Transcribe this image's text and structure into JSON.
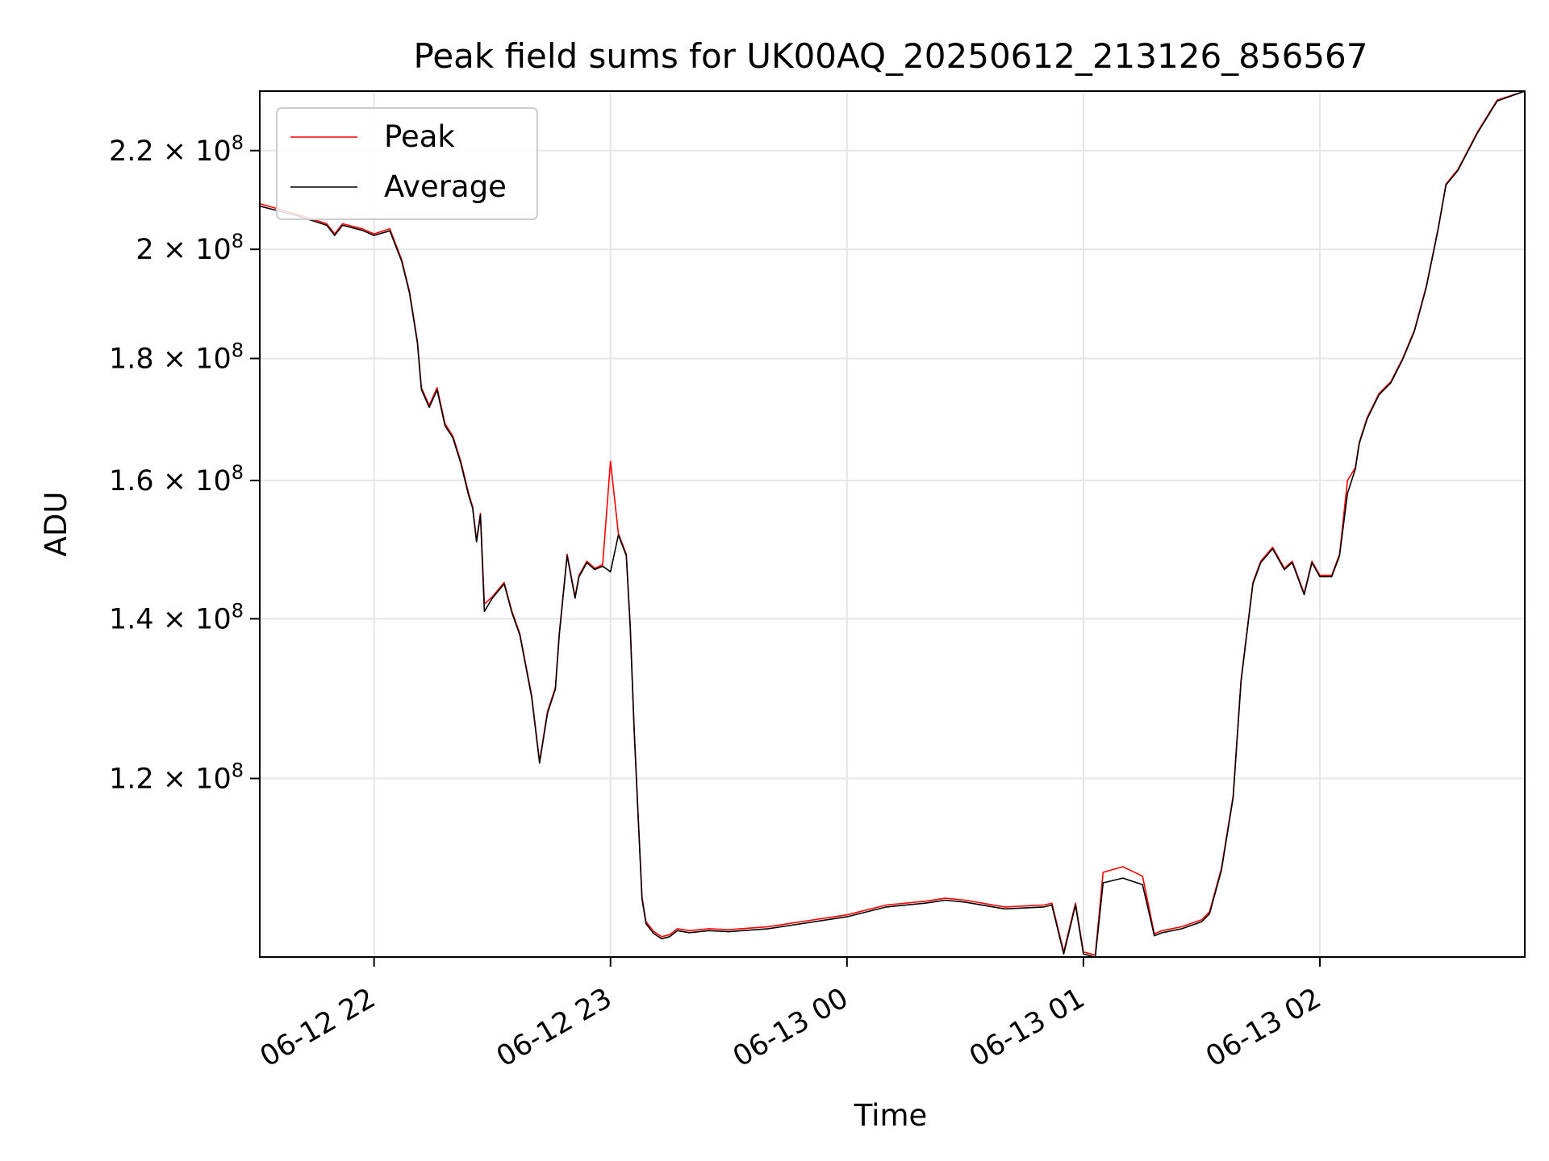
{
  "chart_data": {
    "type": "line",
    "title": "Peak field sums for UK00AQ_20250612_213126_856567",
    "xlabel": "Time",
    "ylabel": "ADU",
    "yscale": "log",
    "ylim": [
      101000000,
      233000000
    ],
    "xlim": [
      "2025-06-12T21:31",
      "2025-06-13T02:52"
    ],
    "grid": true,
    "legend_position": "upper-left",
    "x_ticks": [
      {
        "t": "2025-06-12T22:00",
        "label": "06-12 22"
      },
      {
        "t": "2025-06-12T23:00",
        "label": "06-12 23"
      },
      {
        "t": "2025-06-13T00:00",
        "label": "06-13 00"
      },
      {
        "t": "2025-06-13T01:00",
        "label": "06-13 01"
      },
      {
        "t": "2025-06-13T02:00",
        "label": "06-13 02"
      }
    ],
    "y_ticks": [
      {
        "value": 120000000,
        "mantissa": "1.2",
        "exp": "8"
      },
      {
        "value": 140000000,
        "mantissa": "1.4",
        "exp": "8"
      },
      {
        "value": 160000000,
        "mantissa": "1.6",
        "exp": "8"
      },
      {
        "value": 180000000,
        "mantissa": "1.8",
        "exp": "8"
      },
      {
        "value": 200000000,
        "mantissa": "2",
        "exp": "8"
      },
      {
        "value": 220000000,
        "mantissa": "2.2",
        "exp": "8"
      }
    ],
    "series": [
      {
        "name": "Peak",
        "color": "#ff0000"
      },
      {
        "name": "Average",
        "color": "#000000"
      }
    ],
    "x": [
      "2025-06-12T21:31",
      "2025-06-12T21:40",
      "2025-06-12T21:48",
      "2025-06-12T21:50",
      "2025-06-12T21:52",
      "2025-06-12T21:57",
      "2025-06-12T22:00",
      "2025-06-12T22:04",
      "2025-06-12T22:07",
      "2025-06-12T22:09",
      "2025-06-12T22:11",
      "2025-06-12T22:12",
      "2025-06-12T22:14",
      "2025-06-12T22:16",
      "2025-06-12T22:18",
      "2025-06-12T22:20",
      "2025-06-12T22:22",
      "2025-06-12T22:24",
      "2025-06-12T22:25",
      "2025-06-12T22:26",
      "2025-06-12T22:27",
      "2025-06-12T22:28",
      "2025-06-12T22:30",
      "2025-06-12T22:33",
      "2025-06-12T22:35",
      "2025-06-12T22:37",
      "2025-06-12T22:40",
      "2025-06-12T22:42",
      "2025-06-12T22:44",
      "2025-06-12T22:46",
      "2025-06-12T22:47",
      "2025-06-12T22:49",
      "2025-06-12T22:51",
      "2025-06-12T22:52",
      "2025-06-12T22:54",
      "2025-06-12T22:56",
      "2025-06-12T22:58",
      "2025-06-12T23:00",
      "2025-06-12T23:02",
      "2025-06-12T23:04",
      "2025-06-12T23:05",
      "2025-06-12T23:06",
      "2025-06-12T23:07",
      "2025-06-12T23:08",
      "2025-06-12T23:09",
      "2025-06-12T23:11",
      "2025-06-12T23:13",
      "2025-06-12T23:15",
      "2025-06-12T23:17",
      "2025-06-12T23:20",
      "2025-06-12T23:25",
      "2025-06-12T23:30",
      "2025-06-12T23:40",
      "2025-06-12T23:50",
      "2025-06-13T00:00",
      "2025-06-13T00:10",
      "2025-06-13T00:20",
      "2025-06-13T00:25",
      "2025-06-13T00:30",
      "2025-06-13T00:40",
      "2025-06-13T00:50",
      "2025-06-13T00:52",
      "2025-06-13T00:55",
      "2025-06-13T00:58",
      "2025-06-13T01:00",
      "2025-06-13T01:03",
      "2025-06-13T01:05",
      "2025-06-13T01:10",
      "2025-06-13T01:15",
      "2025-06-13T01:18",
      "2025-06-13T01:20",
      "2025-06-13T01:25",
      "2025-06-13T01:30",
      "2025-06-13T01:32",
      "2025-06-13T01:35",
      "2025-06-13T01:38",
      "2025-06-13T01:40",
      "2025-06-13T01:43",
      "2025-06-13T01:45",
      "2025-06-13T01:48",
      "2025-06-13T01:51",
      "2025-06-13T01:53",
      "2025-06-13T01:56",
      "2025-06-13T01:58",
      "2025-06-13T02:00",
      "2025-06-13T02:03",
      "2025-06-13T02:05",
      "2025-06-13T02:07",
      "2025-06-13T02:09",
      "2025-06-13T02:10",
      "2025-06-13T02:12",
      "2025-06-13T02:15",
      "2025-06-13T02:18",
      "2025-06-13T02:21",
      "2025-06-13T02:24",
      "2025-06-13T02:27",
      "2025-06-13T02:30",
      "2025-06-13T02:32",
      "2025-06-13T02:35",
      "2025-06-13T02:40",
      "2025-06-13T02:45",
      "2025-06-13T02:52"
    ],
    "peak_values": [
      209000000,
      207000000,
      205000000,
      203000000,
      205000000,
      204000000,
      203000000,
      204000000,
      198000000,
      192000000,
      183000000,
      175000000,
      172000000,
      175000000,
      169000000,
      167000000,
      163000000,
      158000000,
      156000000,
      151000000,
      155000000,
      142000000,
      143000000,
      145000000,
      141000000,
      138000000,
      130000000,
      122000000,
      128000000,
      131000000,
      138000000,
      149000000,
      143000000,
      146000000,
      148000000,
      147000000,
      147500000,
      163000000,
      152000000,
      149000000,
      139000000,
      126000000,
      116000000,
      107000000,
      104500000,
      103500000,
      103000000,
      103200000,
      103800000,
      103600000,
      103800000,
      103700000,
      104000000,
      104600000,
      105200000,
      106200000,
      106600000,
      106900000,
      106700000,
      106000000,
      106200000,
      106400000,
      101500000,
      106400000,
      101500000,
      101200000,
      109600000,
      110200000,
      109200000,
      103300000,
      103600000,
      104000000,
      104700000,
      105500000,
      110000000,
      118000000,
      132000000,
      145000000,
      148000000,
      150000000,
      147000000,
      148000000,
      143500000,
      148000000,
      146000000,
      146000000,
      149000000,
      160000000,
      162000000,
      166000000,
      170000000,
      174000000,
      176000000,
      180000000,
      185000000,
      193000000,
      204000000,
      213000000,
      216000000,
      224000000,
      231000000,
      233000000
    ],
    "average_values": [
      208500000,
      206700000,
      204700000,
      202700000,
      204700000,
      203700000,
      202700000,
      203600000,
      197700000,
      191700000,
      182700000,
      174700000,
      171700000,
      174600000,
      168700000,
      166700000,
      162700000,
      157700000,
      155800000,
      150800000,
      154800000,
      141000000,
      142800000,
      144800000,
      140800000,
      137800000,
      129800000,
      121800000,
      127800000,
      130800000,
      137800000,
      148800000,
      142800000,
      145800000,
      147800000,
      146800000,
      147300000,
      146500000,
      151800000,
      148800000,
      138800000,
      125800000,
      115800000,
      106800000,
      104300000,
      103300000,
      102800000,
      103000000,
      103600000,
      103400000,
      103600000,
      103500000,
      103800000,
      104400000,
      105000000,
      106000000,
      106400000,
      106700000,
      106500000,
      105800000,
      106000000,
      106200000,
      101300000,
      106200000,
      101300000,
      101000000,
      108500000,
      109000000,
      108300000,
      103100000,
      103400000,
      103800000,
      104500000,
      105300000,
      109800000,
      117800000,
      131800000,
      144800000,
      147800000,
      149800000,
      146800000,
      147800000,
      143300000,
      147800000,
      145800000,
      145800000,
      148800000,
      158000000,
      161800000,
      165800000,
      169800000,
      173800000,
      175800000,
      179800000,
      184800000,
      192800000,
      203800000,
      212800000,
      215800000,
      223800000,
      230800000,
      233000000
    ]
  }
}
